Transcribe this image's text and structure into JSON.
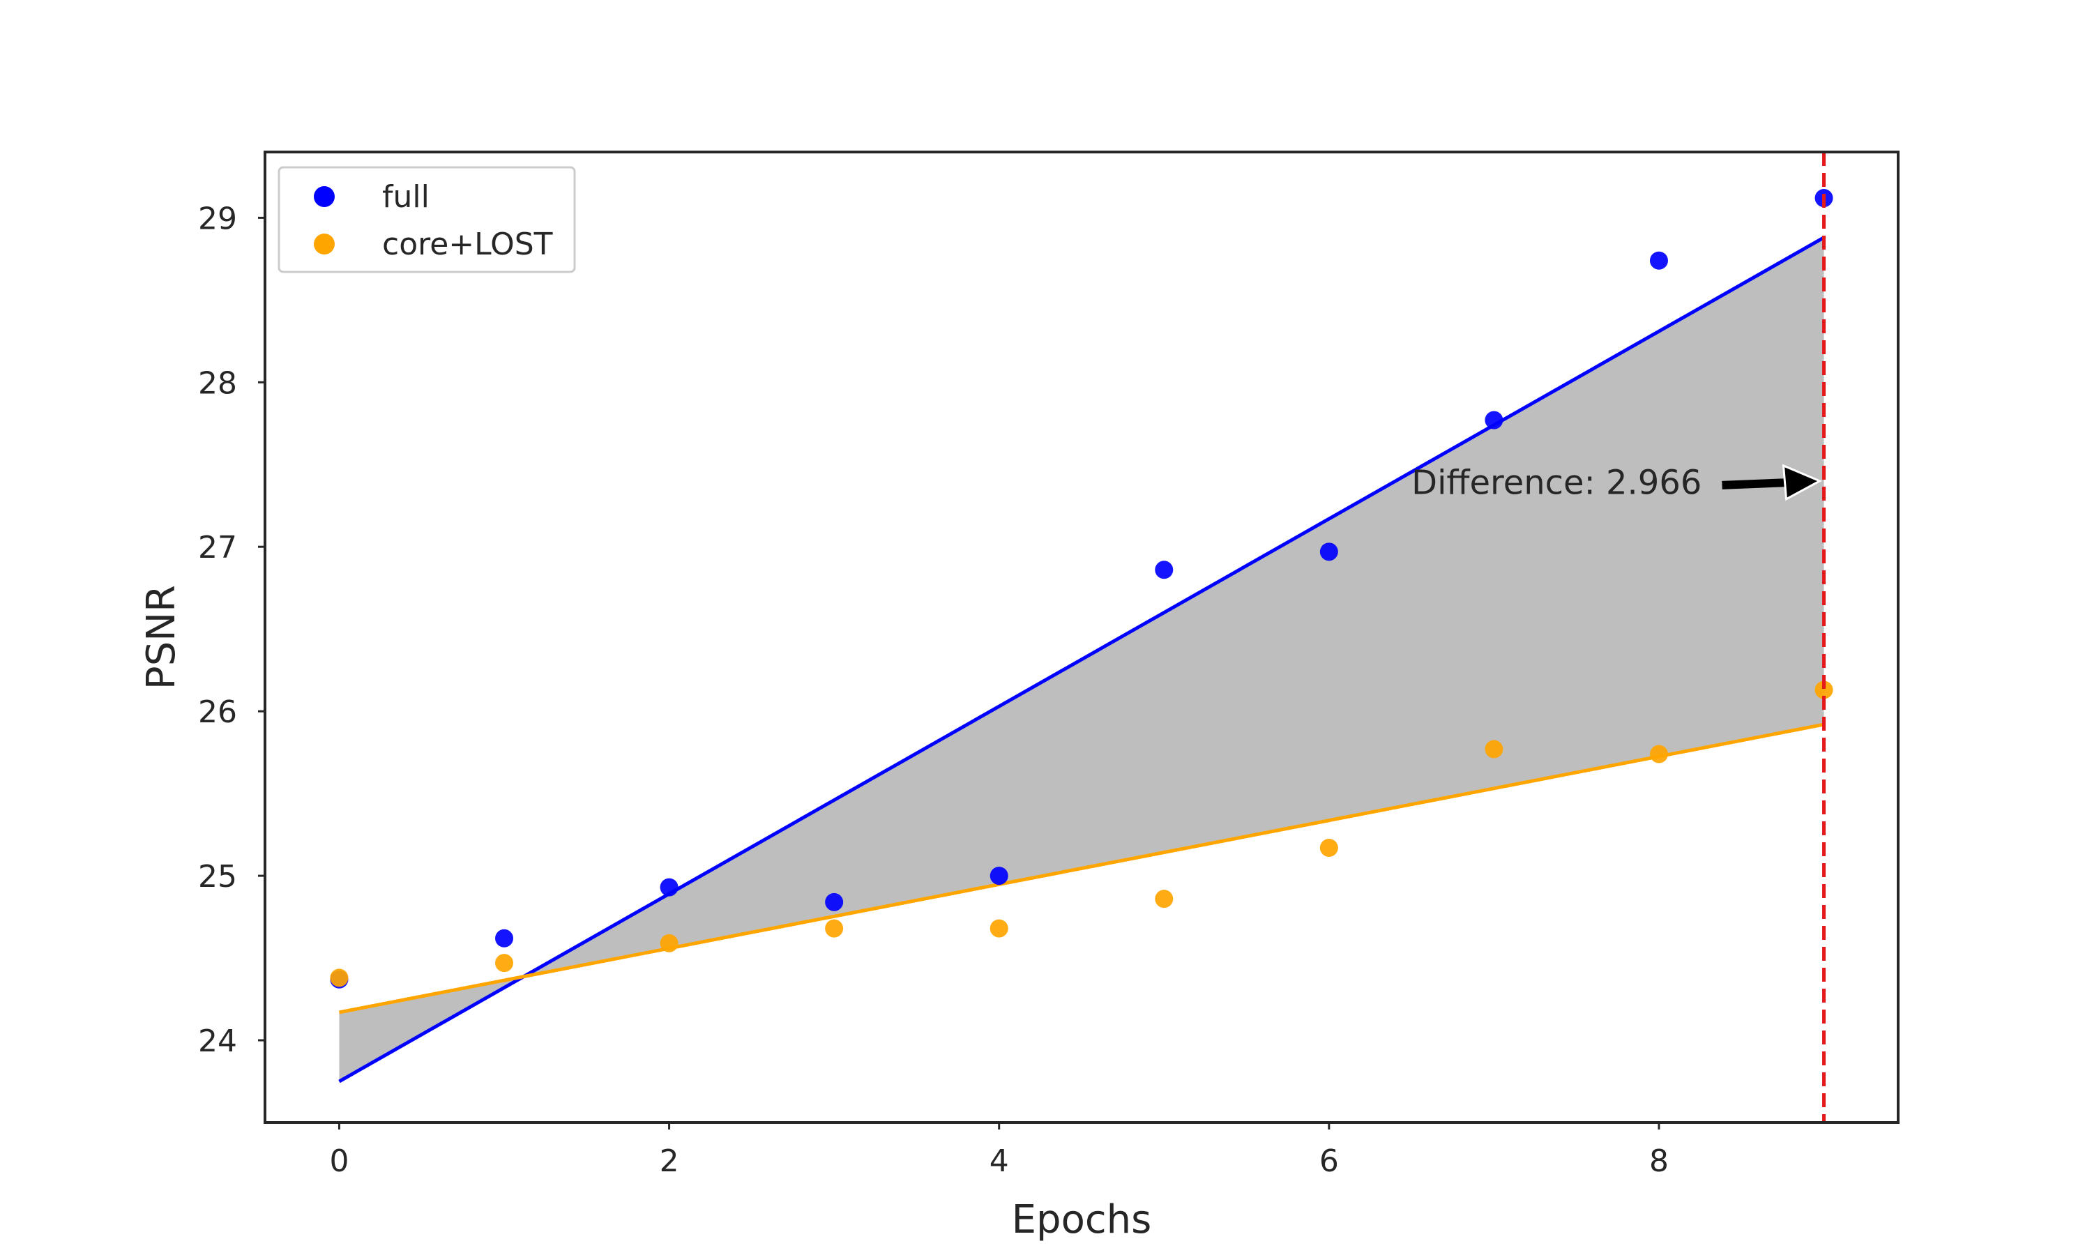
{
  "chart_data": {
    "type": "scatter",
    "xlabel": "Epochs",
    "ylabel": "PSNR",
    "xlim": [
      -0.45,
      9.45
    ],
    "ylim": [
      23.5,
      29.4
    ],
    "x_ticks": [
      0,
      2,
      4,
      6,
      8
    ],
    "y_ticks": [
      24,
      25,
      26,
      27,
      28,
      29
    ],
    "grid": false,
    "legend_position": "top-left",
    "x": [
      0,
      1,
      2,
      3,
      4,
      5,
      6,
      7,
      8,
      9
    ],
    "series": [
      {
        "name": "full",
        "color": "#0000ff",
        "values": [
          24.37,
          24.62,
          24.93,
          24.84,
          25.0,
          26.86,
          26.97,
          27.77,
          28.74,
          29.12
        ],
        "fit_line": {
          "start": [
            0,
            23.75
          ],
          "end": [
            9,
            28.88
          ]
        }
      },
      {
        "name": "core+LOST",
        "color": "#ffa500",
        "values": [
          24.38,
          24.47,
          24.59,
          24.68,
          24.68,
          24.86,
          25.17,
          25.77,
          25.74,
          26.13
        ],
        "fit_line": {
          "start": [
            0,
            24.17
          ],
          "end": [
            9,
            25.92
          ]
        }
      }
    ],
    "fill_between": {
      "color": "#bebebe"
    },
    "vertical_line": {
      "x": 9,
      "color": "#e31a1c",
      "style": "dashed"
    },
    "annotation": {
      "text": "Difference: 2.966",
      "arrow_tip": [
        9,
        27.4
      ],
      "text_anchor": [
        6.5,
        27.32
      ]
    }
  }
}
